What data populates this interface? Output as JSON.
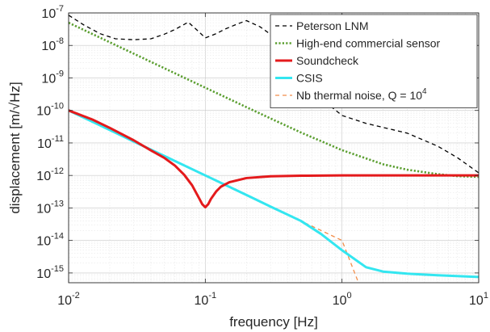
{
  "chart_data": {
    "type": "line",
    "xscale": "log",
    "yscale": "log",
    "xlim": [
      0.01,
      10
    ],
    "ylim": [
      5e-16,
      1e-07
    ],
    "xlabel": "frequency [Hz]",
    "ylabel": "displacement [m/√Hz]",
    "x_ticks": [
      {
        "base": "10",
        "exp": "-2",
        "value": 0.01
      },
      {
        "base": "10",
        "exp": "-1",
        "value": 0.1
      },
      {
        "base": "10",
        "exp": "0",
        "value": 1
      },
      {
        "base": "10",
        "exp": "1",
        "value": 10
      }
    ],
    "y_ticks": [
      {
        "base": "10",
        "exp": "-15",
        "value": 1e-15
      },
      {
        "base": "10",
        "exp": "-14",
        "value": 1e-14
      },
      {
        "base": "10",
        "exp": "-13",
        "value": 1e-13
      },
      {
        "base": "10",
        "exp": "-12",
        "value": 1e-12
      },
      {
        "base": "10",
        "exp": "-11",
        "value": 1e-11
      },
      {
        "base": "10",
        "exp": "-10",
        "value": 1e-10
      },
      {
        "base": "10",
        "exp": "-9",
        "value": 1e-09
      },
      {
        "base": "10",
        "exp": "-8",
        "value": 1e-08
      },
      {
        "base": "10",
        "exp": "-7",
        "value": 1e-07
      }
    ],
    "grid": true,
    "legend_position": "top-right",
    "series": [
      {
        "name": "Peterson LNM",
        "color": "#000000",
        "style": "dashed",
        "x": [
          0.01,
          0.013,
          0.017,
          0.022,
          0.03,
          0.04,
          0.05,
          0.06,
          0.075,
          0.09,
          0.1,
          0.12,
          0.14,
          0.17,
          0.2,
          0.25,
          0.3,
          0.4,
          0.5,
          0.6,
          0.8,
          1.0,
          1.5,
          2,
          3,
          5,
          7,
          10
        ],
        "y": [
          8.5e-08,
          4.2e-08,
          2.3e-08,
          1.6e-08,
          1.5e-08,
          1.6e-08,
          2.2e-08,
          3.1e-08,
          5.2e-08,
          2.6e-08,
          1.7e-08,
          2.3e-08,
          3.2e-08,
          4.5e-08,
          5.8e-08,
          3.8e-08,
          2.2e-08,
          6e-09,
          1.2e-09,
          4e-10,
          1.5e-10,
          7e-11,
          4e-11,
          3e-11,
          2e-11,
          8e-12,
          3.5e-12,
          1.2e-12
        ]
      },
      {
        "name": "High-end commercial sensor",
        "color": "#5a9e2f",
        "style": "dotted",
        "x": [
          0.01,
          0.02,
          0.03,
          0.05,
          0.1,
          0.2,
          0.3,
          0.5,
          1,
          2,
          3,
          5,
          7,
          10
        ],
        "y": [
          5e-08,
          1.25e-08,
          5.56e-09,
          2e-09,
          5e-10,
          1.26e-10,
          5.67e-11,
          2.1e-11,
          6e-12,
          2.2e-12,
          1.5e-12,
          1.1e-12,
          9.5e-13,
          9e-13
        ]
      },
      {
        "name": "Soundcheck",
        "color": "#e41a1c",
        "style": "solid",
        "x": [
          0.01,
          0.015,
          0.02,
          0.03,
          0.04,
          0.05,
          0.06,
          0.07,
          0.08,
          0.09,
          0.095,
          0.1,
          0.105,
          0.11,
          0.12,
          0.13,
          0.15,
          0.2,
          0.3,
          0.5,
          1,
          2,
          5,
          10
        ],
        "y": [
          1e-10,
          5.2e-11,
          2.9e-11,
          1.2e-11,
          5.9e-12,
          3.5e-12,
          2e-12,
          1.05e-12,
          5e-13,
          2e-13,
          1.3e-13,
          1.05e-13,
          1.3e-13,
          1.9e-13,
          3.2e-13,
          4.5e-13,
          6.2e-13,
          8.3e-13,
          9.4e-13,
          9.8e-13,
          1e-12,
          1e-12,
          1e-12,
          1e-12
        ]
      },
      {
        "name": "CSIS",
        "color": "#33e6f0",
        "style": "solid",
        "x": [
          0.01,
          0.02,
          0.03,
          0.05,
          0.1,
          0.2,
          0.3,
          0.5,
          0.7,
          1,
          1.5,
          2,
          3,
          5,
          10
        ],
        "y": [
          1e-10,
          2.5e-11,
          1.1e-11,
          4e-12,
          1e-12,
          2.5e-13,
          1.1e-13,
          4e-14,
          1.6e-14,
          5e-15,
          1.5e-15,
          1.1e-15,
          9.5e-16,
          8.5e-16,
          7.5e-16
        ]
      },
      {
        "name": "Nb thermal noise, Q = 10",
        "name_sup": "4",
        "color": "#f28e4a",
        "style": "dashed",
        "x": [
          0.01,
          0.1,
          1,
          1.3
        ],
        "y": [
          1e-10,
          1e-12,
          1e-14,
          5.9e-16
        ]
      }
    ]
  }
}
